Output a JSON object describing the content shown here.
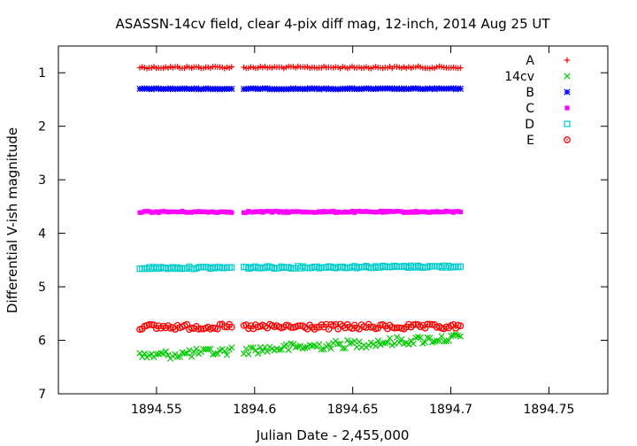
{
  "chart_data": {
    "type": "scatter",
    "title": "ASASSN-14cv field, clear 4-pix diff mag, 12-inch, 2014 Aug 25 UT",
    "xlabel": "Julian Date - 2,455,000",
    "ylabel": "Differential V-ish magnitude",
    "xlim": [
      1894.5,
      1894.78
    ],
    "ylim": [
      0.5,
      7
    ],
    "y_inverted": true,
    "xticks": [
      {
        "value": 1894.55,
        "label": "1894.55"
      },
      {
        "value": 1894.6,
        "label": "1894.6"
      },
      {
        "value": 1894.65,
        "label": "1894.65"
      },
      {
        "value": 1894.7,
        "label": "1894.7"
      },
      {
        "value": 1894.75,
        "label": "1894.75"
      }
    ],
    "yticks": [
      {
        "value": 1,
        "label": "1"
      },
      {
        "value": 2,
        "label": "2"
      },
      {
        "value": 3,
        "label": "3"
      },
      {
        "value": 4,
        "label": "4"
      },
      {
        "value": 5,
        "label": "5"
      },
      {
        "value": 6,
        "label": "6"
      },
      {
        "value": 7,
        "label": "7"
      }
    ],
    "grid": false,
    "legend_position": "top-right",
    "time_segments": [
      {
        "start": 1894.5415,
        "end": 1894.5885,
        "step": 0.0012
      },
      {
        "start": 1894.5945,
        "end": 1894.7055,
        "step": 0.0012
      }
    ],
    "series": [
      {
        "name": "A",
        "marker": "plus",
        "color": "#ff0000",
        "mag": 0.9,
        "scatter": 0.02,
        "trend": 0.0
      },
      {
        "name": "14cv",
        "marker": "cross",
        "color": "#00cc00",
        "mag": 6.3,
        "scatter": 0.08,
        "trend": -0.35
      },
      {
        "name": "B",
        "marker": "star",
        "color": "#0000ff",
        "mag": 1.3,
        "scatter": 0.01,
        "trend": 0.0
      },
      {
        "name": "C",
        "marker": "square-filled",
        "color": "#ff00ff",
        "mag": 3.6,
        "scatter": 0.015,
        "trend": 0.0
      },
      {
        "name": "D",
        "marker": "square-open",
        "color": "#00cccc",
        "mag": 4.65,
        "scatter": 0.02,
        "trend": -0.03
      },
      {
        "name": "E",
        "marker": "circle-open",
        "color": "#ff0000",
        "mag": 5.75,
        "scatter": 0.05,
        "trend": 0.0
      }
    ]
  }
}
